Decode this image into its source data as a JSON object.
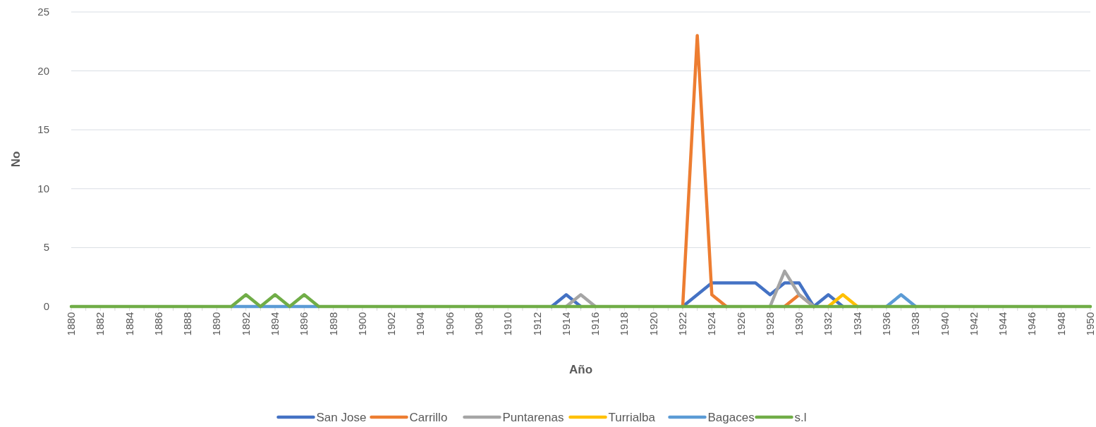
{
  "chart_data": {
    "type": "line",
    "xlabel": "Año",
    "ylabel": "No",
    "x": [
      1880,
      1881,
      1882,
      1883,
      1884,
      1885,
      1886,
      1887,
      1888,
      1889,
      1890,
      1891,
      1892,
      1893,
      1894,
      1895,
      1896,
      1897,
      1898,
      1899,
      1900,
      1901,
      1902,
      1903,
      1904,
      1905,
      1906,
      1907,
      1908,
      1909,
      1910,
      1911,
      1912,
      1913,
      1914,
      1915,
      1916,
      1917,
      1918,
      1919,
      1920,
      1921,
      1922,
      1923,
      1924,
      1925,
      1926,
      1927,
      1928,
      1929,
      1930,
      1931,
      1932,
      1933,
      1934,
      1935,
      1936,
      1937,
      1938,
      1939,
      1940,
      1941,
      1942,
      1943,
      1944,
      1945,
      1946,
      1947,
      1948,
      1949,
      1950
    ],
    "series": [
      {
        "name": "San Jose",
        "color": "#4472c4",
        "values": [
          null,
          null,
          null,
          null,
          null,
          null,
          null,
          null,
          null,
          null,
          null,
          null,
          null,
          null,
          null,
          null,
          null,
          null,
          null,
          null,
          null,
          null,
          null,
          null,
          null,
          null,
          null,
          null,
          null,
          null,
          null,
          null,
          null,
          0,
          1,
          0,
          null,
          null,
          null,
          null,
          null,
          null,
          0,
          1,
          2,
          2,
          2,
          2,
          1,
          2,
          2,
          0,
          1,
          0,
          null,
          null,
          null,
          null,
          null,
          null,
          null,
          null,
          null,
          null,
          null,
          null,
          null,
          null,
          null,
          null,
          null
        ]
      },
      {
        "name": "Carrillo",
        "color": "#ed7d31",
        "values": [
          null,
          null,
          null,
          null,
          null,
          null,
          null,
          null,
          null,
          null,
          null,
          null,
          null,
          null,
          null,
          null,
          null,
          null,
          null,
          null,
          null,
          null,
          null,
          null,
          null,
          null,
          null,
          null,
          null,
          null,
          null,
          null,
          null,
          null,
          null,
          null,
          null,
          null,
          null,
          null,
          null,
          null,
          0,
          23,
          1,
          0,
          null,
          null,
          null,
          0,
          1,
          0,
          null,
          null,
          null,
          null,
          null,
          null,
          null,
          null,
          null,
          null,
          null,
          null,
          null,
          null,
          null,
          null,
          null,
          null,
          null
        ]
      },
      {
        "name": "Puntarenas",
        "color": "#a5a5a5",
        "values": [
          null,
          null,
          null,
          null,
          null,
          null,
          null,
          null,
          null,
          null,
          null,
          null,
          null,
          null,
          null,
          null,
          null,
          null,
          null,
          null,
          null,
          null,
          null,
          null,
          null,
          null,
          null,
          null,
          null,
          null,
          null,
          null,
          null,
          null,
          0,
          1,
          0,
          null,
          null,
          null,
          null,
          null,
          null,
          null,
          null,
          null,
          null,
          null,
          0,
          3,
          1,
          0,
          null,
          null,
          null,
          null,
          null,
          null,
          null,
          null,
          null,
          null,
          null,
          null,
          null,
          null,
          null,
          null,
          null,
          null,
          null
        ]
      },
      {
        "name": "Turrialba",
        "color": "#ffc000",
        "values": [
          null,
          null,
          null,
          null,
          null,
          null,
          null,
          null,
          null,
          null,
          null,
          null,
          null,
          null,
          null,
          null,
          null,
          null,
          null,
          null,
          null,
          null,
          null,
          null,
          null,
          null,
          null,
          null,
          null,
          null,
          null,
          null,
          null,
          null,
          null,
          null,
          null,
          null,
          null,
          null,
          null,
          null,
          null,
          null,
          null,
          null,
          null,
          null,
          null,
          null,
          null,
          null,
          0,
          1,
          0,
          null,
          null,
          null,
          null,
          null,
          null,
          null,
          null,
          null,
          null,
          null,
          null,
          null,
          null,
          null,
          null
        ]
      },
      {
        "name": "Bagaces",
        "color": "#5b9bd5",
        "values": [
          null,
          null,
          null,
          null,
          null,
          null,
          null,
          null,
          null,
          null,
          null,
          0,
          0,
          0,
          0,
          0,
          0,
          0,
          null,
          null,
          null,
          null,
          null,
          null,
          null,
          null,
          null,
          null,
          null,
          null,
          null,
          null,
          null,
          null,
          null,
          null,
          null,
          null,
          null,
          null,
          null,
          null,
          null,
          null,
          null,
          null,
          null,
          null,
          null,
          null,
          null,
          null,
          null,
          null,
          null,
          null,
          0,
          1,
          0,
          null,
          null,
          null,
          null,
          null,
          null,
          null,
          null,
          null,
          null,
          null,
          null
        ]
      },
      {
        "name": "s.l",
        "color": "#70ad47",
        "values": [
          0,
          0,
          0,
          0,
          0,
          0,
          0,
          0,
          0,
          0,
          0,
          0,
          1,
          0,
          1,
          0,
          1,
          0,
          0,
          0,
          0,
          0,
          0,
          0,
          0,
          0,
          0,
          0,
          0,
          0,
          0,
          0,
          0,
          0,
          0,
          0,
          0,
          0,
          0,
          0,
          0,
          0,
          0,
          0,
          0,
          0,
          0,
          0,
          0,
          0,
          0,
          0,
          0,
          0,
          0,
          0,
          0,
          0,
          0,
          0,
          0,
          0,
          0,
          0,
          0,
          0,
          0,
          0,
          0,
          0,
          0
        ]
      }
    ],
    "xlim": [
      1880,
      1950
    ],
    "xticks": [
      1880,
      {
        "value": 1881,
        "label": null
      },
      1882,
      {
        "value": 1883,
        "label": null
      },
      1884,
      {
        "value": 1885,
        "label": null
      },
      1886,
      {
        "value": 1887,
        "label": null
      },
      1888,
      {
        "value": 1889,
        "label": null
      },
      1890,
      {
        "value": 1891,
        "label": null
      },
      1892,
      {
        "value": 1893,
        "label": null
      },
      1894,
      {
        "value": 1895,
        "label": null
      },
      1896,
      {
        "value": 1897,
        "label": null
      },
      1898,
      {
        "value": 1899,
        "label": null
      },
      1900,
      {
        "value": 1901,
        "label": null
      },
      1902,
      {
        "value": 1903,
        "label": null
      },
      1904,
      {
        "value": 1905,
        "label": null
      },
      1906,
      {
        "value": 1907,
        "label": null
      },
      1908,
      {
        "value": 1909,
        "label": null
      },
      1910,
      {
        "value": 1911,
        "label": null
      },
      1912,
      {
        "value": 1913,
        "label": null
      },
      1914,
      {
        "value": 1915,
        "label": null
      },
      1916,
      {
        "value": 1917,
        "label": null
      },
      1918,
      {
        "value": 1919,
        "label": null
      },
      1920,
      {
        "value": 1921,
        "label": null
      },
      1922,
      {
        "value": 1923,
        "label": null
      },
      1924,
      {
        "value": 1925,
        "label": null
      },
      1926,
      {
        "value": 1927,
        "label": null
      },
      1928,
      {
        "value": 1929,
        "label": null
      },
      1930,
      {
        "value": 1931,
        "label": null
      },
      1932,
      {
        "value": 1933,
        "label": null
      },
      1934,
      {
        "value": 1935,
        "label": null
      },
      1936,
      {
        "value": 1937,
        "label": null
      },
      1938,
      {
        "value": 1939,
        "label": null
      },
      1940,
      {
        "value": 1941,
        "label": null
      },
      1942,
      {
        "value": 1943,
        "label": null
      },
      1944,
      {
        "value": 1945,
        "label": null
      },
      1946,
      {
        "value": 1947,
        "label": null
      },
      1948,
      {
        "value": 1949,
        "label": null
      },
      1950
    ],
    "ylim": [
      0,
      25
    ],
    "yticks": [
      0,
      5,
      10,
      15,
      20,
      25
    ],
    "grid": "y",
    "legend": "bottom",
    "marker": "none",
    "line_style": "solid"
  }
}
